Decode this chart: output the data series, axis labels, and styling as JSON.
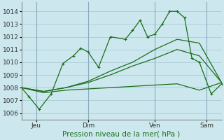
{
  "background_color": "#cce8ee",
  "grid_color": "#99bbcc",
  "line_color": "#1a6e1a",
  "title": "Pression niveau de la mer( hPa )",
  "xlabel_ticks": [
    "Jeu",
    "Dim",
    "Ven",
    "Sam"
  ],
  "ylim": [
    1005.5,
    1014.7
  ],
  "yticks": [
    1006,
    1007,
    1008,
    1009,
    1010,
    1011,
    1012,
    1013,
    1014
  ],
  "xlim": [
    0,
    13.5
  ],
  "vline_positions": [
    1.0,
    4.5,
    9.0,
    12.5
  ],
  "vline_color": "#88aabb",
  "xlabel_tick_positions": [
    1.0,
    4.5,
    9.0,
    12.5
  ],
  "line1_x": [
    0.0,
    0.5,
    1.2,
    2.0,
    2.8,
    3.5,
    4.0,
    4.5,
    5.2,
    6.0,
    7.0,
    7.5,
    8.0,
    8.5,
    9.0,
    9.5,
    10.0,
    10.5,
    11.0,
    11.5,
    12.0,
    12.8,
    13.5
  ],
  "line1_y": [
    1008.0,
    1007.3,
    1006.3,
    1007.5,
    1009.9,
    1010.5,
    1011.1,
    1010.8,
    1009.6,
    1012.0,
    1011.8,
    1012.5,
    1013.3,
    1012.0,
    1012.2,
    1013.0,
    1014.0,
    1014.0,
    1013.5,
    1010.3,
    1010.0,
    1007.5,
    1008.3
  ],
  "line2_x": [
    0.0,
    1.5,
    3.0,
    4.5,
    6.0,
    7.5,
    9.0,
    10.5,
    12.0,
    13.5
  ],
  "line2_y": [
    1008.0,
    1007.6,
    1007.8,
    1007.9,
    1008.0,
    1008.1,
    1008.2,
    1008.3,
    1007.8,
    1008.4
  ],
  "line3_x": [
    0.0,
    1.5,
    3.0,
    4.5,
    6.0,
    7.5,
    9.0,
    10.5,
    12.0,
    13.5
  ],
  "line3_y": [
    1008.0,
    1007.7,
    1008.0,
    1008.4,
    1009.0,
    1009.7,
    1010.3,
    1011.0,
    1010.5,
    1008.4
  ],
  "line4_x": [
    0.0,
    1.5,
    3.0,
    4.5,
    6.0,
    7.5,
    9.0,
    10.5,
    12.0,
    13.5
  ],
  "line4_y": [
    1008.0,
    1007.7,
    1008.0,
    1008.5,
    1009.3,
    1010.0,
    1011.0,
    1011.8,
    1011.5,
    1008.4
  ]
}
